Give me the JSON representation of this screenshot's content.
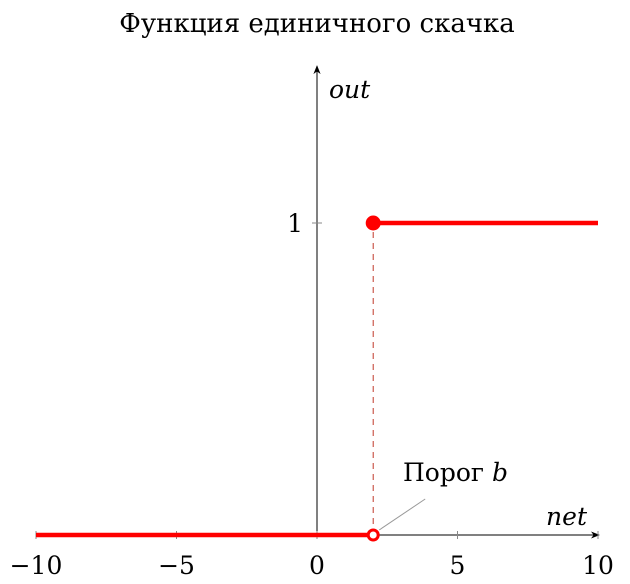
{
  "chart_data": {
    "type": "line",
    "title": "Функция единичного скачка",
    "xlabel": "net",
    "ylabel": "out",
    "xlim": [
      -10,
      10
    ],
    "ylim": [
      0,
      1.5
    ],
    "x_ticks": [
      {
        "value": -10,
        "label": "−10"
      },
      {
        "value": -5,
        "label": "−5"
      },
      {
        "value": 0,
        "label": "0"
      },
      {
        "value": 5,
        "label": "5"
      },
      {
        "value": 10,
        "label": "10"
      }
    ],
    "y_ticks": [
      {
        "value": 1,
        "label": "1"
      }
    ],
    "series": [
      {
        "segments": [
          {
            "x": [
              -10,
              2
            ],
            "y": [
              0,
              0
            ]
          },
          {
            "x": [
              2,
              10
            ],
            "y": [
              1,
              1
            ]
          }
        ],
        "color": "#ff0000"
      }
    ],
    "threshold": 2,
    "markers": [
      {
        "x": 2,
        "y": 1,
        "style": "filled"
      },
      {
        "x": 2,
        "y": 0,
        "style": "open"
      }
    ],
    "annotation": {
      "text": "Порог ",
      "math": "b",
      "x": 2,
      "y": 0
    },
    "colors": {
      "series": "#ff0000",
      "dashed": "#c0392b",
      "axis": "#000000",
      "annotation_line": "#999999"
    }
  }
}
